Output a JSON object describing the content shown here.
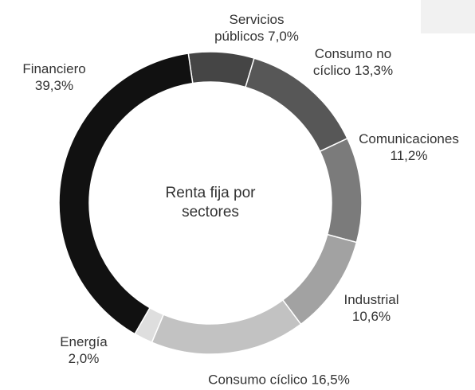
{
  "chart_data": {
    "type": "donut",
    "title": "Renta fija por sectores",
    "categories": [
      "Servicios públicos",
      "Consumo no cíclico",
      "Comunicaciones",
      "Industrial",
      "Consumo cíclico",
      "Energía",
      "Financiero"
    ],
    "values": [
      7.0,
      13.3,
      11.2,
      10.6,
      16.5,
      2.0,
      39.3
    ],
    "value_labels": [
      "7,0%",
      "13,3%",
      "11,2%",
      "10,6%",
      "16,5%",
      "2,0%",
      "39,3%"
    ],
    "colors": [
      "#454545",
      "#575757",
      "#7b7b7b",
      "#a2a2a2",
      "#c2c2c2",
      "#dedede",
      "#111111"
    ]
  }
}
